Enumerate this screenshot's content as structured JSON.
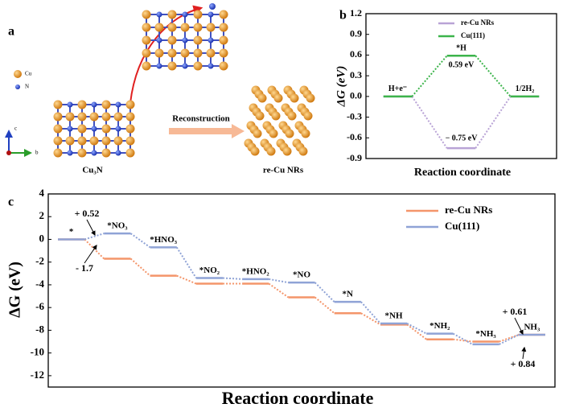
{
  "panel_a": {
    "letter": "a",
    "legend": [
      "Cu",
      "N"
    ],
    "axes": [
      "c",
      "b"
    ],
    "left_label": "Cu₃N",
    "arrow_label": "Reconstruction",
    "right_label": "re-Cu NRs"
  },
  "chart_data": [
    {
      "type": "energy-profile",
      "letter": "b",
      "ylabel": "ΔG (eV)",
      "xlabel": "Reaction coordinate",
      "categories": [
        "H+e⁻",
        "*H",
        "1/2H₂"
      ],
      "series": [
        {
          "name": "re-Cu NRs",
          "color": "#b9a3d6",
          "values": [
            0,
            -0.75,
            0
          ],
          "value_labels": [
            null,
            "− 0.75 eV",
            null
          ]
        },
        {
          "name": "Cu(111)",
          "color": "#3cb44b",
          "values": [
            0,
            0.59,
            0
          ],
          "value_labels": [
            null,
            "0.59 eV",
            null
          ]
        }
      ],
      "ylim": [
        -0.9,
        1.2
      ],
      "yticks": [
        -0.9,
        -0.6,
        -0.3,
        {
          "value": 0,
          "label": "0.0"
        },
        0.3,
        0.6,
        0.9,
        1.2
      ],
      "legend": "top-right"
    },
    {
      "type": "energy-profile",
      "letter": "c",
      "ylabel": "ΔG (eV)",
      "xlabel": "Reaction coordinate",
      "categories": [
        "*",
        "*NO₃",
        "*HNO₃",
        "*NO₂",
        "*HNO₂",
        "*NO",
        "*N",
        "*NH",
        "*NH₂",
        "*NH₃",
        "NH₃"
      ],
      "series": [
        {
          "name": "re-Cu NRs",
          "color": "#f4956a",
          "values": [
            0,
            -1.7,
            -3.2,
            -3.9,
            -3.9,
            -5.1,
            -6.5,
            -7.5,
            -8.8,
            -9.0,
            -8.4
          ]
        },
        {
          "name": "Cu(111)",
          "color": "#8fa3d6",
          "values": [
            0,
            0.52,
            -0.7,
            -3.4,
            -3.5,
            -3.8,
            -5.5,
            -7.4,
            -8.3,
            -9.24,
            -8.4
          ]
        }
      ],
      "annotations": [
        "+ 0.52",
        "- 1.7",
        "+ 0.61",
        "+ 0.84"
      ],
      "ylim": [
        -13,
        4
      ],
      "yticks": [
        -12,
        -10,
        -8,
        -6,
        -4,
        -2,
        0,
        2,
        4
      ],
      "legend": "top-right"
    }
  ]
}
